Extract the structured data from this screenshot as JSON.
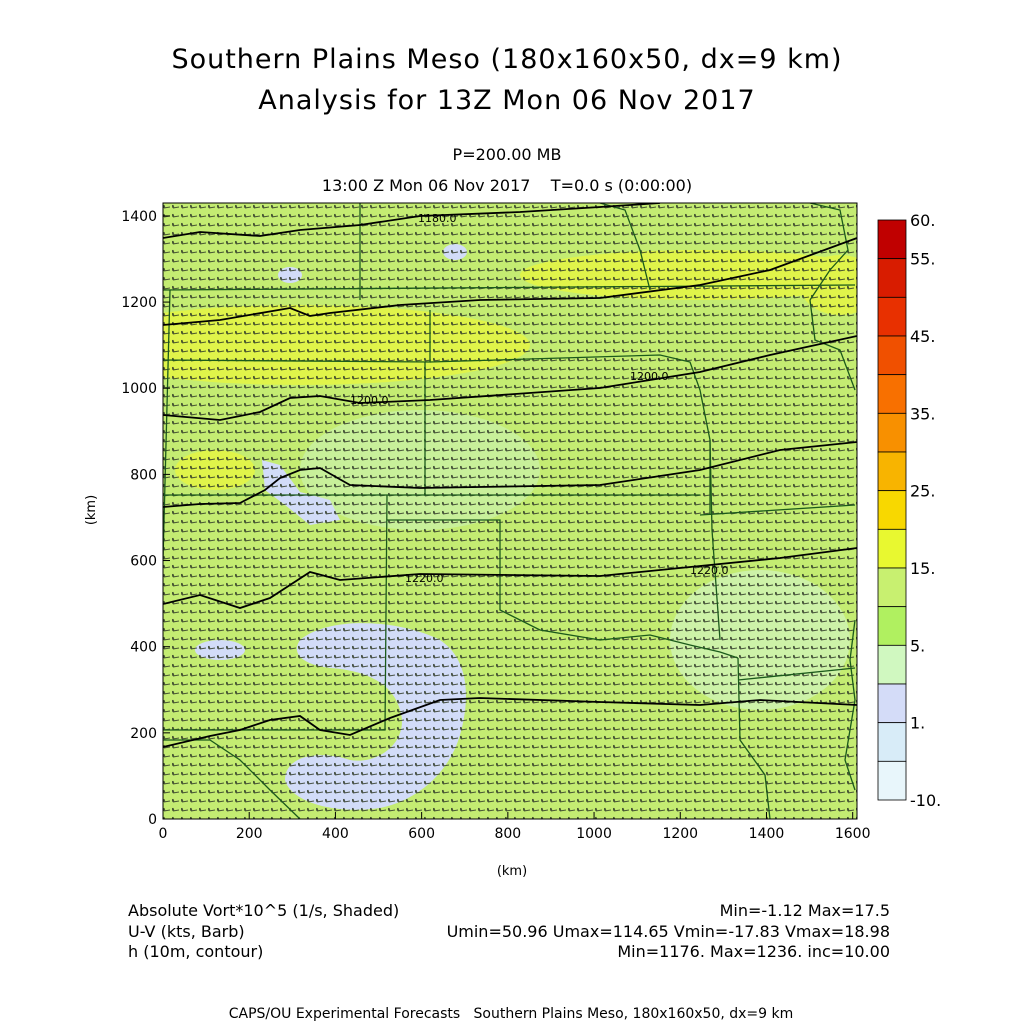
{
  "title": "Southern Plains Meso (180x160x50, dx=9 km)",
  "subtitle": "Analysis for 13Z Mon 06 Nov 2017",
  "level": "P=200.00 MB",
  "time_line": "13:00 Z Mon 06 Nov 2017    T=0.0 s (0:00:00)",
  "axes": {
    "xlabel": "(km)",
    "ylabel": "(km)",
    "x_ticks": [
      "0",
      "200",
      "400",
      "600",
      "800",
      "1000",
      "1200",
      "1400",
      "1600"
    ],
    "y_ticks": [
      "0",
      "200",
      "400",
      "600",
      "800",
      "1000",
      "1200",
      "1400"
    ]
  },
  "colorbar": {
    "labels": [
      "60.",
      "55.",
      "45.",
      "35.",
      "25.",
      "15.",
      "5.",
      "1.",
      "-10."
    ],
    "colors": [
      "#c00000",
      "#d81c00",
      "#e83000",
      "#f05000",
      "#f87000",
      "#f89000",
      "#f8b400",
      "#f8d800",
      "#e8f830",
      "#c8f070",
      "#b0f060",
      "#d0f8c0",
      "#d4dcf8",
      "#d8ecf8",
      "#e8f6fb"
    ]
  },
  "contour_labels": [
    "1180.0",
    "1200.0",
    "1200.0",
    "1220.0",
    "1220.0"
  ],
  "legend": {
    "vort_label": "Absolute Vort*10^5 (1/s, Shaded)",
    "vort_stats": "Min=-1.12 Max=17.5",
    "wind_label": "U-V (kts, Barb)",
    "wind_stats": "Umin=50.96 Umax=114.65 Vmin=-17.83 Vmax=18.98",
    "height_label": "h (10m, contour)",
    "height_stats": "Min=1176. Max=1236. inc=10.00"
  },
  "credit": "CAPS/OU Experimental Forecasts   Southern Plains Meso, 180x160x50, dx=9 km"
}
